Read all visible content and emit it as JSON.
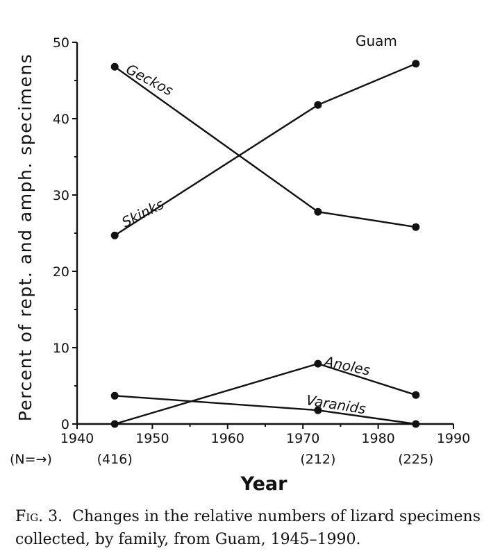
{
  "chart_data": {
    "type": "line",
    "region_label": "Guam",
    "xlabel": "Year",
    "ylabel": "Percent of rept. and amph. specimens",
    "xlim": [
      1940,
      1990
    ],
    "ylim": [
      0,
      50
    ],
    "x_ticks": [
      "1940",
      "1950",
      "1960",
      "1970",
      "1980",
      "1990"
    ],
    "y_ticks": [
      "0",
      "10",
      "20",
      "30",
      "40",
      "50"
    ],
    "n_prefix": "(N=→)",
    "n_labels": [
      "(416)",
      "(212)",
      "(225)"
    ],
    "x": [
      1945,
      1972,
      1985
    ],
    "series": [
      {
        "name": "Geckos",
        "values": [
          46.8,
          27.8,
          25.8
        ]
      },
      {
        "name": "Skinks",
        "values": [
          24.7,
          41.8,
          47.2
        ]
      },
      {
        "name": "Anoles",
        "values": [
          0.0,
          7.9,
          3.8
        ]
      },
      {
        "name": "Varanids",
        "values": [
          3.7,
          1.8,
          0.0
        ]
      }
    ],
    "grid": false,
    "legend": "inline labels"
  },
  "caption": {
    "fig_number": "Fig. 3.",
    "text": "Changes in the relative numbers of lizard specimens collected, by family, from Guam, 1945–1990."
  }
}
